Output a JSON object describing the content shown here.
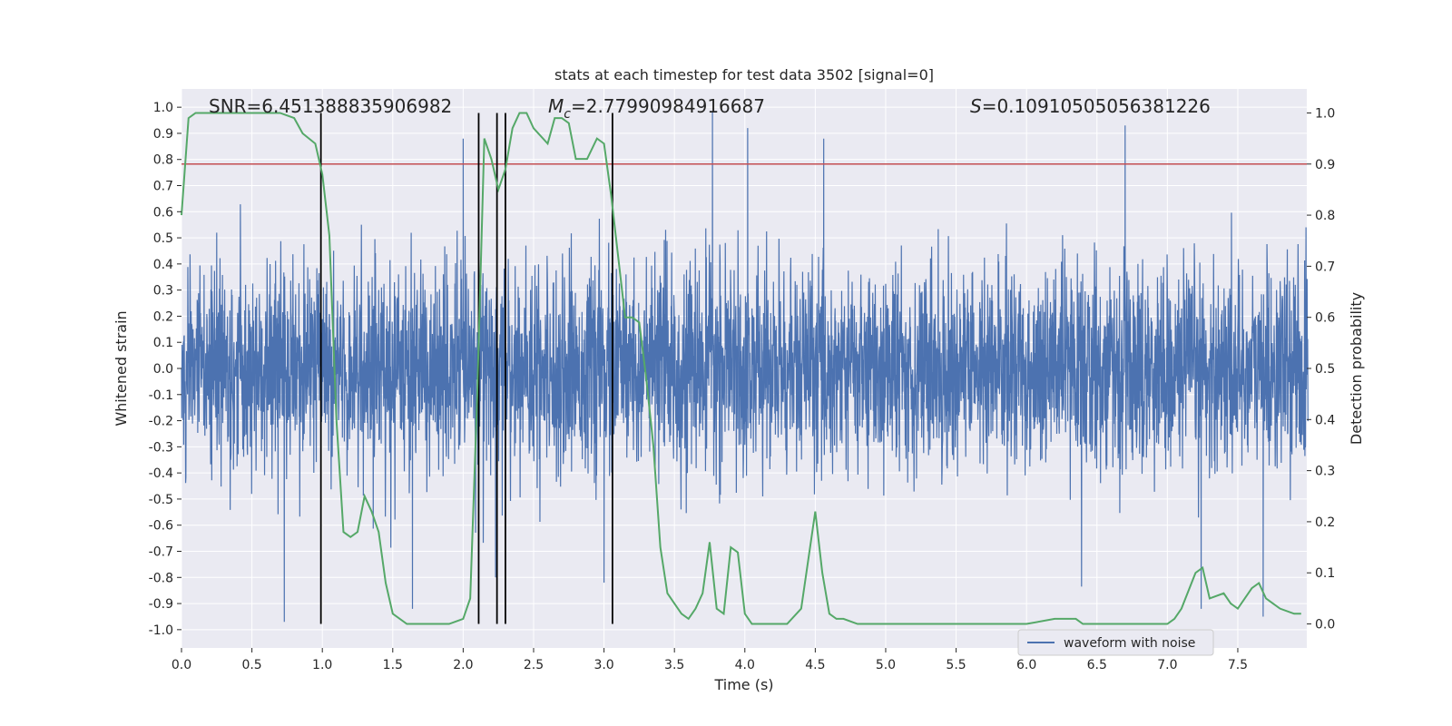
{
  "chart_data": {
    "type": "line",
    "title": "stats at each timestep for test data 3502 [signal=0]",
    "xlabel": "Time (s)",
    "ylabel_left": "Whitened strain",
    "ylabel_right": "Detection probability",
    "xlim": [
      0,
      7.99
    ],
    "ylim_left": [
      -1.07,
      1.07
    ],
    "ylim_right": [
      -0.047,
      1.047
    ],
    "x_ticks": [
      0.0,
      0.5,
      1.0,
      1.5,
      2.0,
      2.5,
      3.0,
      3.5,
      4.0,
      4.5,
      5.0,
      5.5,
      6.0,
      6.5,
      7.0,
      7.5
    ],
    "x_tick_labels": [
      "0.0",
      "0.5",
      "1.0",
      "1.5",
      "2.0",
      "2.5",
      "3.0",
      "3.5",
      "4.0",
      "4.5",
      "5.0",
      "5.5",
      "6.0",
      "6.5",
      "7.0",
      "7.5"
    ],
    "y_left_ticks": [
      1.0,
      0.9,
      0.8,
      0.7,
      0.6,
      0.5,
      0.4,
      0.3,
      0.2,
      0.1,
      0.0,
      -0.1,
      -0.2,
      -0.3,
      -0.4,
      -0.5,
      -0.6,
      -0.7,
      -0.8,
      -0.9,
      -1.0
    ],
    "y_left_tick_labels": [
      "1.0",
      "0.9",
      "0.8",
      "0.7",
      "0.6",
      "0.5",
      "0.4",
      "0.3",
      "0.2",
      "0.1",
      "0.0",
      "-0.1",
      "-0.2",
      "-0.3",
      "-0.4",
      "-0.5",
      "-0.6",
      "-0.7",
      "-0.8",
      "-0.9",
      "-1.0"
    ],
    "y_right_ticks": [
      1.0,
      0.9,
      0.8,
      0.7,
      0.6,
      0.5,
      0.4,
      0.3,
      0.2,
      0.1,
      0.0
    ],
    "y_right_tick_labels": [
      "1.0",
      "0.9",
      "0.8",
      "0.7",
      "0.6",
      "0.5",
      "0.4",
      "0.3",
      "0.2",
      "0.1",
      "0.0"
    ],
    "annotations": {
      "snr": "SNR=6.451388835906982",
      "mc_symbol": "M",
      "mc_subscript": "c",
      "mc_value": "=2.77990984916687",
      "s_symbol": "S",
      "s_value": "=0.10910505056381226"
    },
    "threshold": {
      "axis": "right",
      "value": 0.9,
      "color": "#c44e52"
    },
    "vertical_lines": {
      "x": [
        0.99,
        2.11,
        2.24,
        2.3,
        3.06
      ],
      "y_range_right": [
        0.0,
        1.0
      ],
      "color": "#000000"
    },
    "waveform": {
      "name": "waveform with noise",
      "color": "#4c72b0",
      "duration": 8.0,
      "typical_envelope": 0.4,
      "notable_peaks": [
        {
          "x": 1.64,
          "y": -0.92
        },
        {
          "x": 0.73,
          "y": -0.97
        },
        {
          "x": 3.77,
          "y": 0.98
        },
        {
          "x": 4.02,
          "y": 0.92
        },
        {
          "x": 4.56,
          "y": 0.88
        },
        {
          "x": 6.7,
          "y": 0.93
        },
        {
          "x": 7.68,
          "y": -0.95
        },
        {
          "x": 7.24,
          "y": -0.92
        },
        {
          "x": 2.0,
          "y": 0.88
        },
        {
          "x": 2.23,
          "y": -0.8
        },
        {
          "x": 3.0,
          "y": -0.82
        }
      ]
    },
    "detection_probability": {
      "color": "#55a868",
      "x": [
        0.0,
        0.05,
        0.1,
        0.2,
        0.3,
        0.5,
        0.7,
        0.8,
        0.86,
        0.95,
        1.0,
        1.05,
        1.1,
        1.15,
        1.2,
        1.25,
        1.3,
        1.35,
        1.4,
        1.45,
        1.5,
        1.6,
        1.7,
        1.8,
        1.9,
        2.0,
        2.05,
        2.1,
        2.15,
        2.2,
        2.25,
        2.3,
        2.35,
        2.4,
        2.45,
        2.5,
        2.6,
        2.65,
        2.7,
        2.75,
        2.8,
        2.88,
        2.95,
        3.0,
        3.05,
        3.1,
        3.15,
        3.2,
        3.25,
        3.3,
        3.35,
        3.4,
        3.45,
        3.5,
        3.55,
        3.6,
        3.65,
        3.7,
        3.75,
        3.8,
        3.85,
        3.9,
        3.95,
        4.0,
        4.05,
        4.1,
        4.2,
        4.3,
        4.4,
        4.5,
        4.55,
        4.6,
        4.65,
        4.7,
        4.8,
        4.9,
        5.0,
        5.1,
        5.2,
        5.5,
        6.0,
        6.2,
        6.3,
        6.35,
        6.4,
        6.5,
        6.8,
        7.0,
        7.05,
        7.1,
        7.2,
        7.25,
        7.3,
        7.4,
        7.45,
        7.5,
        7.6,
        7.65,
        7.7,
        7.8,
        7.9,
        7.95
      ],
      "y": [
        0.8,
        0.99,
        1.0,
        1.0,
        1.0,
        1.0,
        1.0,
        0.99,
        0.96,
        0.94,
        0.88,
        0.76,
        0.4,
        0.18,
        0.17,
        0.18,
        0.25,
        0.22,
        0.18,
        0.08,
        0.02,
        0.0,
        0.0,
        0.0,
        0.0,
        0.01,
        0.05,
        0.45,
        0.95,
        0.91,
        0.85,
        0.89,
        0.97,
        1.0,
        1.0,
        0.97,
        0.94,
        0.99,
        0.99,
        0.98,
        0.91,
        0.91,
        0.95,
        0.94,
        0.84,
        0.72,
        0.6,
        0.6,
        0.59,
        0.48,
        0.35,
        0.15,
        0.06,
        0.04,
        0.02,
        0.01,
        0.03,
        0.06,
        0.16,
        0.03,
        0.02,
        0.15,
        0.14,
        0.02,
        0.0,
        0.0,
        0.0,
        0.0,
        0.03,
        0.22,
        0.1,
        0.02,
        0.01,
        0.01,
        0.0,
        0.0,
        0.0,
        0.0,
        0.0,
        0.0,
        0.0,
        0.01,
        0.01,
        0.01,
        0.0,
        0.0,
        0.0,
        0.0,
        0.01,
        0.03,
        0.1,
        0.11,
        0.05,
        0.06,
        0.04,
        0.03,
        0.07,
        0.08,
        0.05,
        0.03,
        0.02,
        0.02
      ]
    },
    "legend": {
      "entries": [
        "waveform with noise"
      ],
      "placement": "lower-right"
    },
    "grid": true
  }
}
